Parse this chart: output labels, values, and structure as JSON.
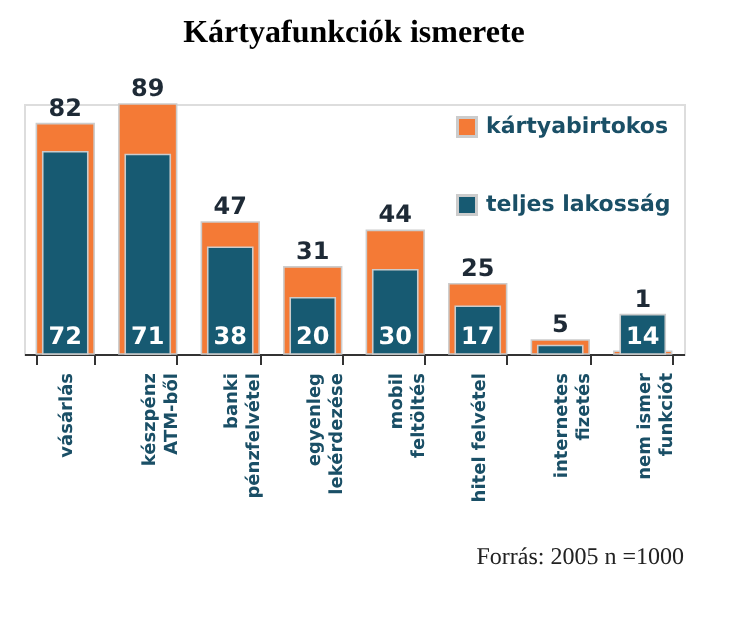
{
  "chart_data": {
    "type": "bar",
    "title": "Kártyafunkciók ismerete",
    "categories": [
      "vásárlás",
      "készpénz\nATM-ből",
      "banki\npénzfelvétel",
      "egyenleg\nlekérdezése",
      "mobil\nfeltöltés",
      "hitel felvétel",
      "internetes\nfizetés",
      "nem ismer\nfunkciót"
    ],
    "series": [
      {
        "name": "kártyabirtokos",
        "color": "#f47a36",
        "values": [
          82,
          89,
          47,
          31,
          44,
          25,
          5,
          1
        ],
        "value_labels": [
          "82",
          "89",
          "47",
          "31",
          "44",
          "25",
          "5",
          "1"
        ]
      },
      {
        "name": "teljes lakosság",
        "color": "#175a72",
        "values": [
          72,
          71,
          38,
          20,
          30,
          17,
          3,
          14
        ],
        "value_labels": [
          "72",
          "71",
          "38",
          "20",
          "30",
          "17",
          null,
          "14"
        ]
      }
    ],
    "legend": "top right",
    "grid": false,
    "annotations": [
      "Forrás: 2005  n =1000"
    ]
  }
}
